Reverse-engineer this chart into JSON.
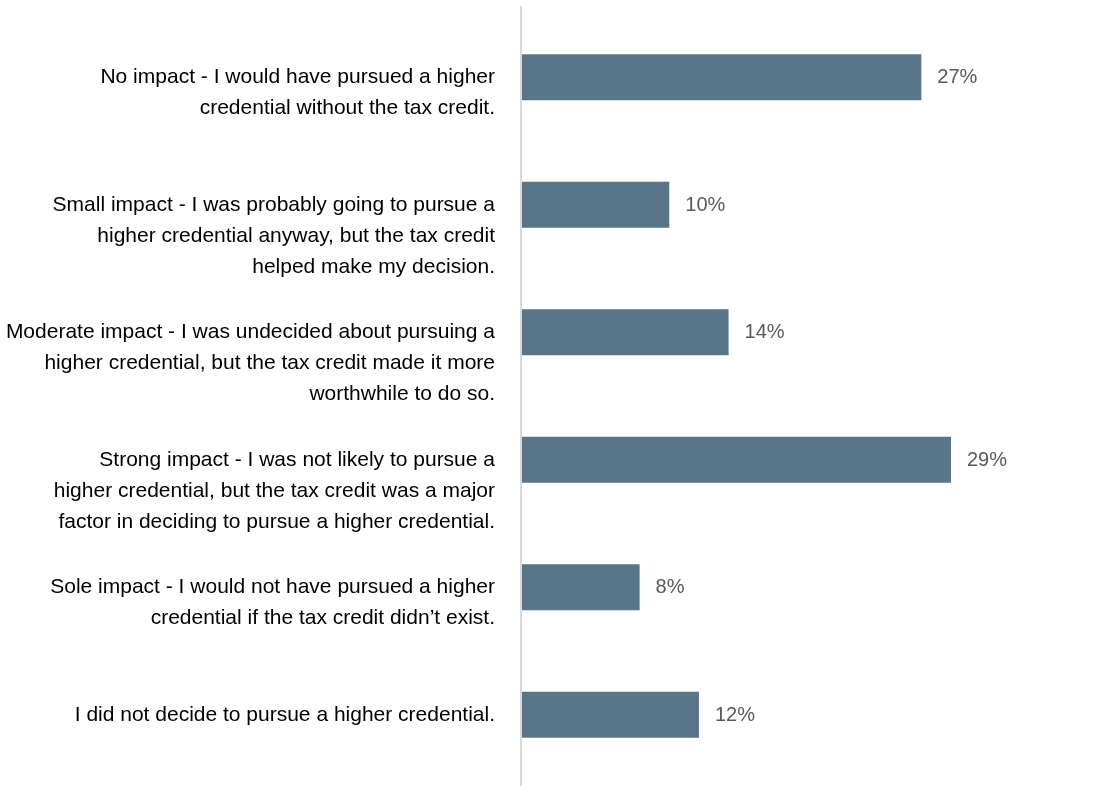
{
  "chart_data": {
    "type": "bar",
    "orientation": "horizontal",
    "color": "#587589",
    "categories": [
      "No impact - I would have pursued a higher credential without the tax credit.",
      "Small impact - I was probably going to pursue a higher credential anyway, but the tax credit helped make my decision.",
      "Moderate impact - I was undecided about pursuing a higher credential, but the tax credit made it more worthwhile to do so.",
      "Strong impact - I was not likely to pursue a higher credential, but the tax credit was a major factor in deciding to pursue a higher credential.",
      "Sole impact - I would not have pursued a higher credential if the tax credit didn’t exist.",
      "I did not decide to pursue a higher credential."
    ],
    "values": [
      27,
      10,
      14,
      29,
      8,
      12
    ],
    "value_labels": [
      "27%",
      "10%",
      "14%",
      "29%",
      "8%",
      "12%"
    ]
  }
}
